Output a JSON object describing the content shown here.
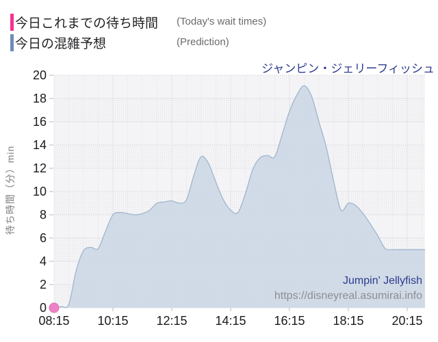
{
  "title": "ジャンピン・ジェリーフィッシュ",
  "legend": {
    "items": [
      {
        "label": "今日これまでの待ち時間",
        "sublabel": "(Today's wait times)",
        "color": "#f5318f"
      },
      {
        "label": "今日の混雑予想",
        "sublabel": "(Prediction)",
        "color": "#6d8cba"
      }
    ]
  },
  "watermark": {
    "name": "Jumpin' Jellyfish",
    "url": "https://disneyreal.asumirai.info"
  },
  "chart_data": {
    "type": "area",
    "title": "ジャンピン・ジェリーフィッシュ",
    "xlabel": "",
    "ylabel": "待ち時間（分）min",
    "ylim": [
      0,
      20
    ],
    "y_ticks": [
      0,
      2,
      4,
      6,
      8,
      10,
      12,
      14,
      16,
      18,
      20
    ],
    "x_tick_labels": [
      "08:15",
      "10:15",
      "12:15",
      "14:15",
      "16:15",
      "18:15",
      "20:15"
    ],
    "x_minor_grid_minutes": 30,
    "grid": true,
    "legend_position": "top-left",
    "series": [
      {
        "name": "今日これまでの待ち時間",
        "name_en": "Today's wait times",
        "type": "scatter",
        "marker_color": "#ec82c4",
        "marker_edge": "#e06eb6",
        "points": [
          [
            "08:15",
            0
          ]
        ]
      },
      {
        "name": "今日の混雑予想",
        "name_en": "Prediction",
        "type": "area",
        "fill_color": "#cdd8e5",
        "stroke_color": "#a3b8cf",
        "points": [
          [
            "08:15",
            0
          ],
          [
            "08:30",
            0.1
          ],
          [
            "08:45",
            0.3
          ],
          [
            "09:00",
            3.2
          ],
          [
            "09:15",
            4.9
          ],
          [
            "09:30",
            5.2
          ],
          [
            "09:45",
            5.1
          ],
          [
            "10:00",
            6.6
          ],
          [
            "10:15",
            8.0
          ],
          [
            "10:30",
            8.2
          ],
          [
            "10:45",
            8.1
          ],
          [
            "11:00",
            8.0
          ],
          [
            "11:15",
            8.1
          ],
          [
            "11:30",
            8.4
          ],
          [
            "11:45",
            9.0
          ],
          [
            "12:00",
            9.1
          ],
          [
            "12:15",
            9.2
          ],
          [
            "12:30",
            9.0
          ],
          [
            "12:45",
            9.3
          ],
          [
            "13:00",
            11.4
          ],
          [
            "13:15",
            13.0
          ],
          [
            "13:30",
            12.4
          ],
          [
            "13:45",
            10.8
          ],
          [
            "14:00",
            9.3
          ],
          [
            "14:15",
            8.4
          ],
          [
            "14:30",
            8.2
          ],
          [
            "14:45",
            9.8
          ],
          [
            "15:00",
            11.9
          ],
          [
            "15:15",
            12.9
          ],
          [
            "15:30",
            13.1
          ],
          [
            "15:45",
            13.0
          ],
          [
            "16:00",
            14.9
          ],
          [
            "16:15",
            16.9
          ],
          [
            "16:30",
            18.3
          ],
          [
            "16:45",
            19.1
          ],
          [
            "17:00",
            18.2
          ],
          [
            "17:15",
            16.0
          ],
          [
            "17:30",
            13.8
          ],
          [
            "17:45",
            10.9
          ],
          [
            "18:00",
            8.4
          ],
          [
            "18:15",
            9.0
          ],
          [
            "18:30",
            8.8
          ],
          [
            "18:45",
            8.1
          ],
          [
            "19:00",
            7.2
          ],
          [
            "19:15",
            6.2
          ],
          [
            "19:30",
            5.1
          ],
          [
            "19:45",
            5.0
          ],
          [
            "20:00",
            5.0
          ],
          [
            "20:15",
            5.0
          ],
          [
            "20:30",
            5.0
          ],
          [
            "20:45",
            5.0
          ]
        ]
      }
    ]
  }
}
